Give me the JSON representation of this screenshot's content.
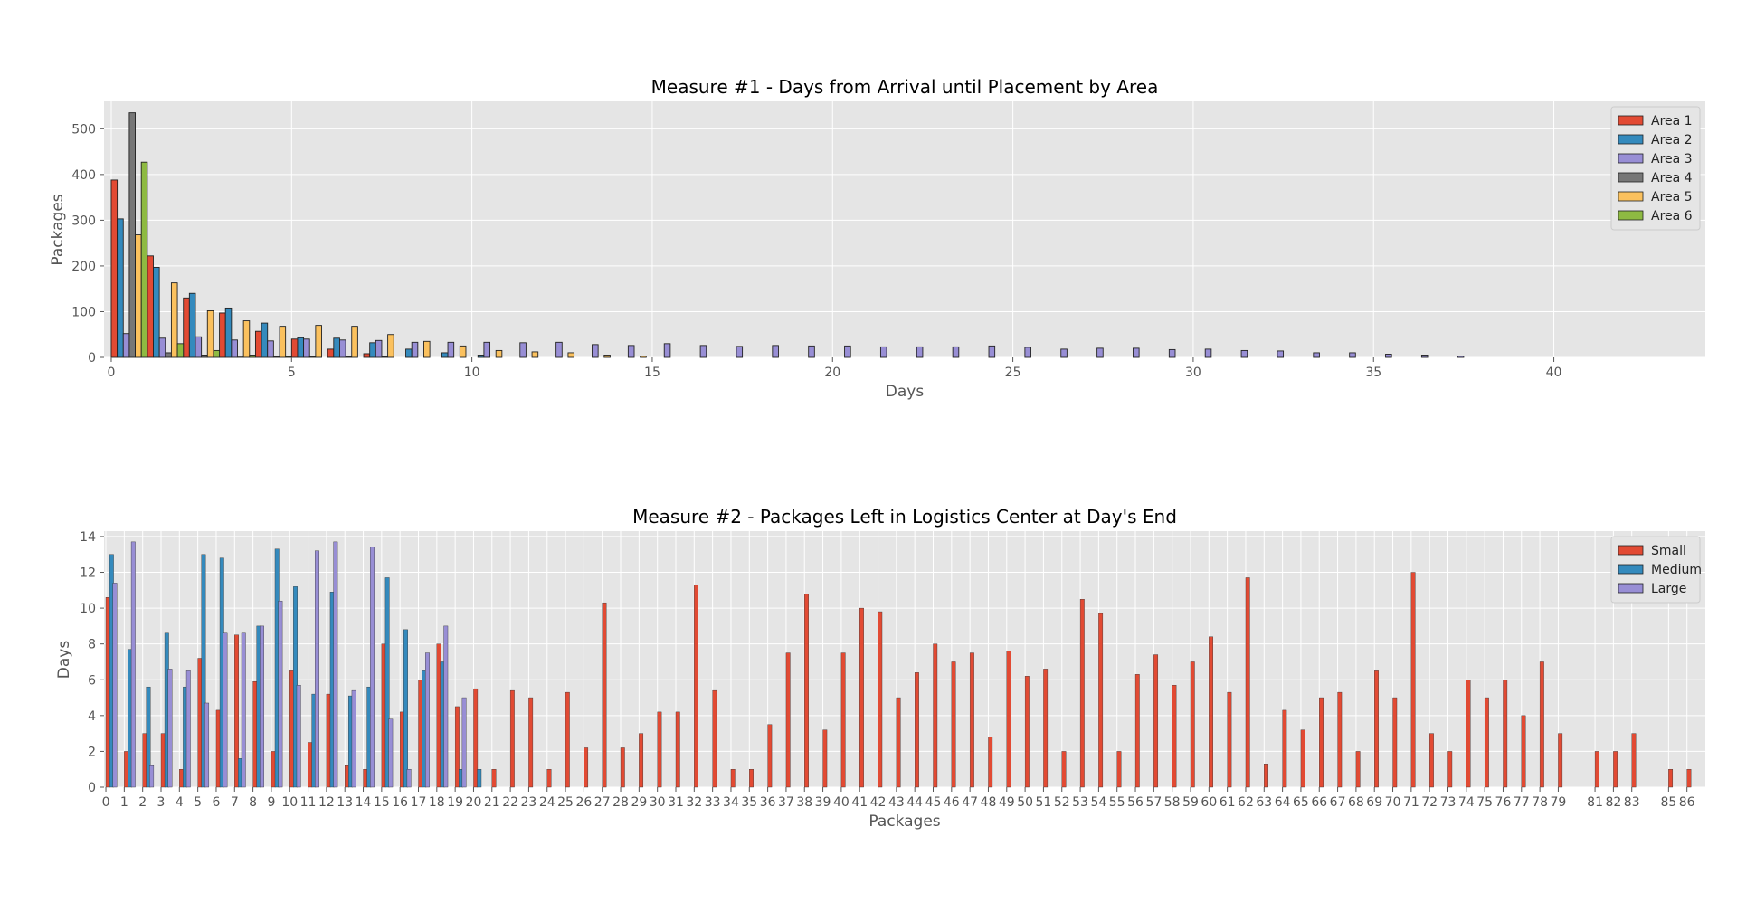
{
  "colors": {
    "plot_bg": "#e5e5e5",
    "grid": "#ffffff",
    "series": [
      "#e24a33",
      "#348abd",
      "#988ed5",
      "#777777",
      "#fbc15e",
      "#8eba42"
    ]
  },
  "chart_data": [
    {
      "type": "bar",
      "title": "Measure #1 - Days from Arrival until Placement by Area",
      "xlabel": "Days",
      "ylabel": "Packages",
      "xlim": [
        -0.2,
        44.2
      ],
      "ylim": [
        0,
        560
      ],
      "xticks": [
        "0",
        "5",
        "10",
        "15",
        "20",
        "25",
        "30",
        "35",
        "40"
      ],
      "yticks": [
        "0",
        "100",
        "200",
        "300",
        "400",
        "500"
      ],
      "grid": true,
      "legend_position": "top-right",
      "bin_width": 1,
      "series": [
        {
          "name": "Area 1",
          "x": [
            0,
            1,
            2,
            3,
            4,
            5,
            6,
            7
          ],
          "values": [
            388,
            222,
            130,
            97,
            57,
            40,
            18,
            8
          ]
        },
        {
          "name": "Area 2",
          "x": [
            0,
            1,
            2,
            3,
            4,
            5,
            6,
            7,
            8,
            9,
            10
          ],
          "values": [
            303,
            197,
            140,
            108,
            75,
            43,
            42,
            32,
            18,
            10,
            5
          ]
        },
        {
          "name": "Area 3",
          "x": [
            0,
            1,
            2,
            3,
            4,
            5,
            6,
            7,
            8,
            9,
            10,
            11,
            12,
            13,
            14,
            15,
            16,
            17,
            18,
            19,
            20,
            21,
            22,
            23,
            24,
            25,
            26,
            27,
            28,
            29,
            30,
            31,
            32,
            33,
            34,
            35,
            36,
            37
          ],
          "values": [
            52,
            42,
            45,
            38,
            36,
            40,
            38,
            37,
            33,
            33,
            33,
            32,
            33,
            28,
            26,
            30,
            26,
            24,
            26,
            25,
            25,
            23,
            23,
            23,
            25,
            22,
            18,
            20,
            20,
            17,
            18,
            15,
            14,
            10,
            10,
            7,
            5,
            3
          ]
        },
        {
          "name": "Area 4",
          "x": [
            0,
            1,
            2,
            3,
            4,
            5,
            6,
            7
          ],
          "values": [
            535,
            10,
            5,
            3,
            2,
            1,
            1,
            1
          ]
        },
        {
          "name": "Area 5",
          "x": [
            0,
            1,
            2,
            3,
            4,
            5,
            6,
            7,
            8,
            9,
            10,
            11,
            12,
            13,
            14
          ],
          "values": [
            268,
            163,
            102,
            80,
            68,
            70,
            68,
            50,
            35,
            25,
            15,
            12,
            10,
            5,
            3
          ]
        },
        {
          "name": "Area 6",
          "x": [
            0,
            1,
            2,
            3,
            4
          ],
          "values": [
            427,
            30,
            15,
            5,
            2
          ]
        }
      ]
    },
    {
      "type": "bar",
      "title": "Measure #2 - Packages Left in Logistics Center at Day's End",
      "xlabel": "Packages",
      "ylabel": "Days",
      "xlim": [
        -0.1,
        87
      ],
      "ylim": [
        0,
        14.3
      ],
      "xticks": [
        "0",
        "1",
        "2",
        "3",
        "4",
        "5",
        "6",
        "7",
        "8",
        "9",
        "10",
        "11",
        "12",
        "13",
        "14",
        "15",
        "16",
        "17",
        "18",
        "19",
        "20",
        "21",
        "22",
        "23",
        "24",
        "25",
        "26",
        "27",
        "28",
        "29",
        "30",
        "31",
        "32",
        "33",
        "34",
        "35",
        "36",
        "37",
        "38",
        "39",
        "40",
        "41",
        "42",
        "43",
        "44",
        "45",
        "46",
        "47",
        "48",
        "49",
        "50",
        "51",
        "52",
        "53",
        "54",
        "55",
        "56",
        "57",
        "58",
        "59",
        "60",
        "61",
        "62",
        "63",
        "64",
        "65",
        "66",
        "67",
        "68",
        "69",
        "70",
        "71",
        "72",
        "73",
        "74",
        "75",
        "76",
        "77",
        "78",
        "79",
        "81",
        "82",
        "83",
        "85",
        "86"
      ],
      "yticks": [
        "0",
        "2",
        "4",
        "6",
        "8",
        "10",
        "12",
        "14"
      ],
      "grid": true,
      "legend_position": "top-right",
      "series": [
        {
          "name": "Small",
          "values": [
            10.6,
            2,
            3,
            3,
            1,
            7.2,
            4.3,
            8.5,
            5.9,
            2,
            6.5,
            2.5,
            5.2,
            1.2,
            1,
            8,
            4.2,
            6,
            8,
            4.5,
            5.5,
            1,
            5.4,
            5,
            1,
            5.3,
            2.2,
            10.3,
            2.2,
            3,
            4.2,
            4.2,
            11.3,
            5.4,
            1,
            1,
            3.5,
            7.5,
            10.8,
            3.2,
            7.5,
            10,
            9.8,
            5,
            6.4,
            8,
            7,
            7.5,
            2.8,
            7.6,
            6.2,
            6.6,
            2,
            10.5,
            9.7,
            2,
            6.3,
            7.4,
            5.7,
            7,
            8.4,
            5.3,
            11.7,
            1.3,
            4.3,
            3.2,
            5,
            5.3,
            2,
            6.5,
            5,
            12,
            3,
            2,
            6,
            5,
            6,
            4,
            7,
            3,
            2,
            2,
            3,
            1,
            1
          ]
        },
        {
          "name": "Medium",
          "values": [
            13,
            7.7,
            5.6,
            8.6,
            5.6,
            13,
            12.8,
            1.6,
            9,
            13.3,
            11.2,
            5.2,
            10.9,
            5.1,
            5.6,
            11.7,
            8.8,
            6.5,
            7,
            1,
            1
          ]
        },
        {
          "name": "Large",
          "values": [
            11.4,
            13.7,
            1.2,
            6.6,
            6.5,
            4.7,
            8.6,
            8.6,
            9,
            10.4,
            5.7,
            13.2,
            13.7,
            5.4,
            13.4,
            3.8,
            1,
            7.5,
            9,
            5
          ]
        }
      ]
    }
  ]
}
